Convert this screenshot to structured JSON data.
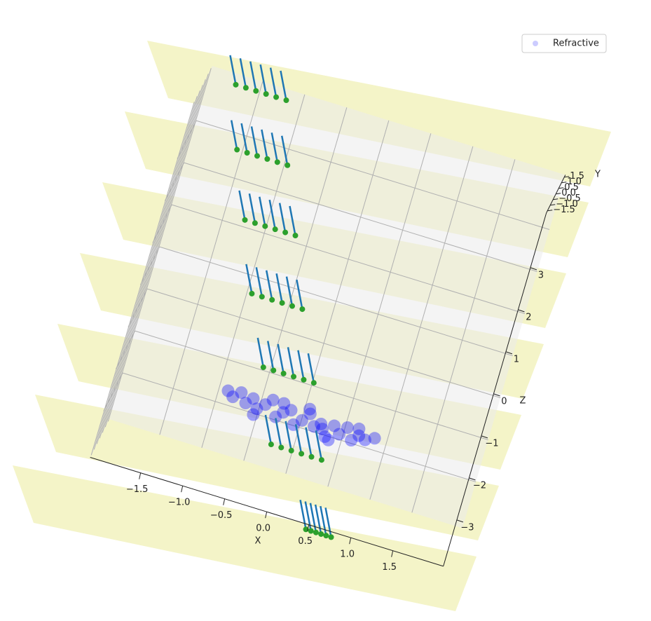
{
  "chart_data": {
    "type": "scatter3d",
    "xlabel": "X",
    "ylabel": "Y",
    "zlabel": "Z",
    "xlim": [
      -2.1,
      2.1
    ],
    "ylim": [
      -1.7,
      1.7
    ],
    "zlim": [
      -4.1,
      4.3
    ],
    "xticks": [
      {
        "value": -1.5,
        "label": "−1.5"
      },
      {
        "value": -1.0,
        "label": "−1.0"
      },
      {
        "value": -0.5,
        "label": "−0.5"
      },
      {
        "value": 0,
        "label": "0.0"
      },
      0.5,
      {
        "value": 1,
        "label": "1.0"
      },
      1.5
    ],
    "yticks": [
      {
        "value": -1.5,
        "label": "−1.5"
      },
      {
        "value": -1.0,
        "label": "−1.0"
      },
      {
        "value": -0.5,
        "label": "−0.5"
      },
      {
        "value": 0,
        "label": "0.0"
      },
      0.5,
      {
        "value": 1,
        "label": "1.0"
      },
      1.5
    ],
    "zticks": [
      {
        "value": -3,
        "label": "−3"
      },
      {
        "value": -2,
        "label": "−2"
      },
      {
        "value": -1,
        "label": "−1"
      },
      0,
      1,
      2,
      3
    ],
    "grid": true,
    "legend": "upper right",
    "series": [
      {
        "name": "Refractive",
        "color": "#0000ff",
        "x": [
          -0.85,
          -0.78,
          -0.7,
          -0.62,
          -0.55,
          -0.48,
          -0.4,
          -0.33,
          -0.25,
          -0.18,
          -0.1,
          -0.03,
          0.05,
          0.12,
          0.2,
          0.27,
          0.35,
          0.42,
          0.5,
          0.57,
          0.65,
          0.72,
          0.8,
          0.9,
          -0.5,
          -0.2,
          0.1,
          0.4,
          0.7,
          0.3
        ],
        "z": [
          -2.2,
          -2.3,
          -2.15,
          -2.35,
          -2.2,
          -2.4,
          -2.25,
          -2.1,
          -2.45,
          -2.3,
          -2.2,
          -2.5,
          -2.35,
          -2.15,
          -2.4,
          -2.3,
          -2.55,
          -2.25,
          -2.4,
          -2.2,
          -2.45,
          -2.3,
          -2.35,
          -2.25,
          -2.55,
          -2.1,
          -2.05,
          -2.6,
          -2.15,
          -2.4
        ]
      }
    ],
    "sensors": {
      "color": "#2ca02c",
      "ray_color": "#1f77b4",
      "x": [
        -1.74,
        -1.62,
        -1.5,
        -1.38,
        -1.26,
        -1.14,
        -1.52,
        -1.4,
        -1.28,
        -1.16,
        -1.04,
        -0.92,
        -1.21,
        -1.09,
        -0.97,
        -0.85,
        -0.73,
        -0.61,
        -0.9,
        -0.78,
        -0.66,
        -0.54,
        -0.42,
        -0.3,
        -0.54,
        -0.42,
        -0.3,
        -0.18,
        -0.06,
        0.06,
        -0.21,
        -0.09,
        0.03,
        0.15,
        0.27,
        0.39,
        0.44,
        0.5,
        0.56,
        0.62,
        0.68,
        0.74
      ],
      "z": [
        4.53,
        4.53,
        4.53,
        4.53,
        4.53,
        4.53,
        3.12,
        3.12,
        3.12,
        3.12,
        3.12,
        3.12,
        1.64,
        1.64,
        1.64,
        1.64,
        1.64,
        1.64,
        0.08,
        0.08,
        0.08,
        0.08,
        0.08,
        0.08,
        -1.45,
        -1.45,
        -1.45,
        -1.45,
        -1.45,
        -1.45,
        -3.08,
        -3.08,
        -3.08,
        -3.08,
        -3.08,
        -3.08,
        -4.7,
        -4.7,
        -4.7,
        -4.7,
        -4.7,
        -4.7
      ]
    }
  }
}
